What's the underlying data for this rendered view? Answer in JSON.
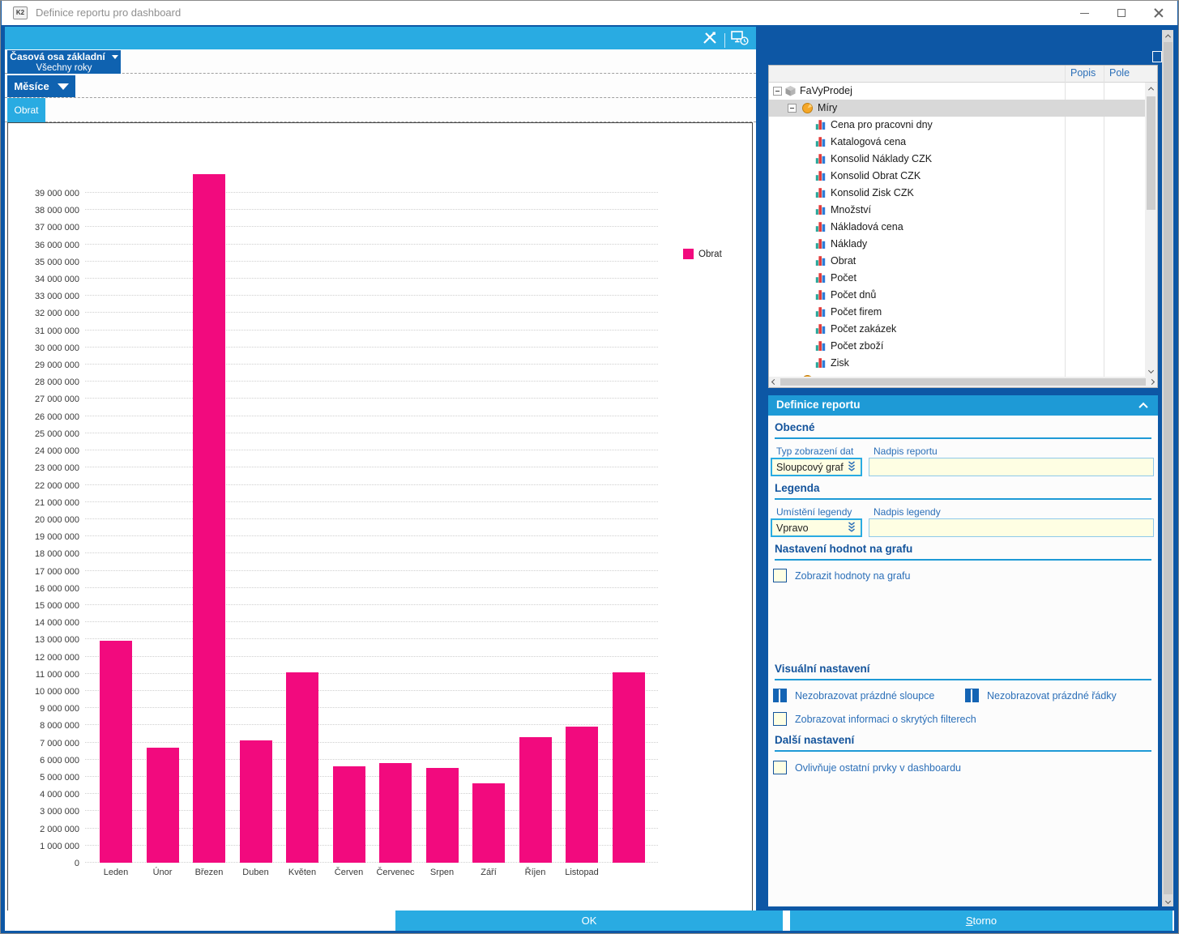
{
  "window": {
    "title": "Definice reportu pro dashboard",
    "logo_text": "K2"
  },
  "colors": {
    "accent_cyan": "#29ABE2",
    "dark_blue_frame": "#0D57A5",
    "button_blue": "#0F62B0",
    "panel_header_blue": "#1E9AD6",
    "bar_pink": "#F20A7E",
    "input_bg": "#FEFEE3"
  },
  "chart_panel": {
    "time_axis_button": "Časová osa základní",
    "time_axis_value": "Všechny roky",
    "group_button": "Měsíce",
    "series_tab": "Obrat",
    "header_icons": [
      "design-tools-icon",
      "display-clock-icon"
    ]
  },
  "chart_data": {
    "type": "bar",
    "title": "",
    "xlabel": "",
    "ylabel": "",
    "categories": [
      "Leden",
      "Únor",
      "Březen",
      "Duben",
      "Květen",
      "Červen",
      "Červenec",
      "Srpen",
      "Září",
      "Říjen",
      "Listopad",
      ""
    ],
    "series": [
      {
        "name": "Obrat",
        "color": "#F20A7E",
        "values": [
          12900000,
          6700000,
          40100000,
          7100000,
          11100000,
          5600000,
          5800000,
          5500000,
          4600000,
          7300000,
          7900000,
          11100000
        ]
      }
    ],
    "y_axis": {
      "min": 0,
      "max": 39000000,
      "tick_step": 1000000
    },
    "grid": "dotted-horizontal",
    "legend_position": "right"
  },
  "tree_panel": {
    "columns": [
      "Popis",
      "Pole"
    ],
    "root": "FaVyProdej",
    "group": "Míry",
    "selected_item": "Míry",
    "items": [
      "Cena pro pracovni dny",
      "Katalogová cena",
      "Konsolid Náklady CZK",
      "Konsolid Obrat CZK",
      "Konsolid Zisk CZK",
      "Množství",
      "Nákladová cena",
      "Náklady",
      "Obrat",
      "Počet",
      "Počet dnů",
      "Počet firem",
      "Počet zakázek",
      "Počet zboží",
      "Zisk"
    ],
    "partial_row_visible": true
  },
  "definition": {
    "header": "Definice reportu",
    "general": {
      "heading": "Obecné",
      "type_label": "Typ zobrazení dat",
      "type_value": "Sloupcový graf",
      "title_label": "Nadpis reportu",
      "title_value": ""
    },
    "legend": {
      "heading": "Legenda",
      "position_label": "Umístění legendy",
      "position_value": "Vpravo",
      "title_label": "Nadpis legendy",
      "title_value": ""
    },
    "values_on_chart": {
      "heading": "Nastavení hodnot na grafu",
      "checkbox": {
        "label": "Zobrazit hodnoty na grafu",
        "checked": false
      }
    },
    "visual": {
      "heading": "Visuální nastavení",
      "checkboxes": [
        {
          "label": "Nezobrazovat prázdné sloupce",
          "checked": true
        },
        {
          "label": "Nezobrazovat prázdné řádky",
          "checked": true
        },
        {
          "label": "Zobrazovat informaci o skrytých filterech",
          "checked": false
        }
      ]
    },
    "other": {
      "heading": "Další nastavení",
      "checkboxes": [
        {
          "label": "Ovlivňuje ostatní prvky v dashboardu",
          "checked": false
        }
      ]
    }
  },
  "footer": {
    "ok_label": "OK",
    "cancel_accel": "S",
    "cancel_rest": "torno"
  }
}
